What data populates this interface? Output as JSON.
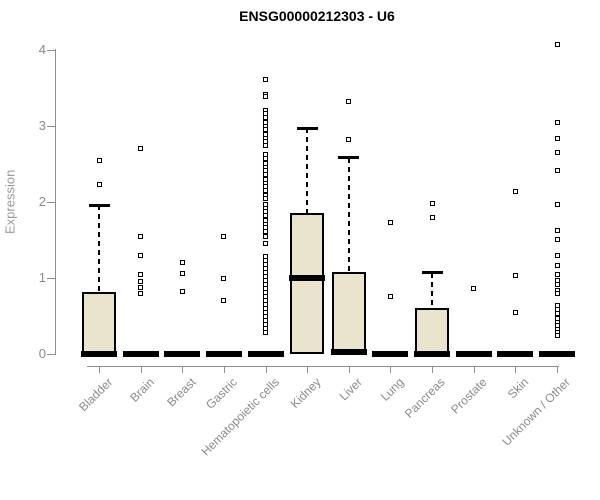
{
  "chart_data": {
    "type": "boxplot",
    "title": "ENSG00000212303 - U6",
    "ylabel": "Expression",
    "xlabel": "",
    "ylim": [
      0,
      4
    ],
    "yticks": [
      "0",
      "1",
      "2",
      "3",
      "4"
    ],
    "grid": false,
    "legend": null,
    "categories": [
      "Bladder",
      "Brain",
      "Breast",
      "Gastric",
      "Hematopoietic cells",
      "Kidney",
      "Liver",
      "Lung",
      "Pancreas",
      "Prostate",
      "Skin",
      "Unknown / Other"
    ],
    "series": [
      {
        "category": "Bladder",
        "slug": "bladder",
        "q1": 0,
        "median": 0,
        "q3": 0.82,
        "whisker_low": 0,
        "whisker_high": 1.96,
        "outliers": [
          2.55,
          2.23
        ]
      },
      {
        "category": "Brain",
        "slug": "brain",
        "q1": 0,
        "median": 0,
        "q3": 0,
        "whisker_low": 0,
        "whisker_high": 0,
        "outliers": [
          2.71,
          1.55,
          1.29,
          1.04,
          0.95,
          0.88,
          0.8
        ]
      },
      {
        "category": "Breast",
        "slug": "breast",
        "q1": 0,
        "median": 0,
        "q3": 0,
        "whisker_low": 0,
        "whisker_high": 0,
        "outliers": [
          1.21,
          1.06,
          0.82
        ]
      },
      {
        "category": "Gastric",
        "slug": "gastric",
        "q1": 0,
        "median": 0,
        "q3": 0,
        "whisker_low": 0,
        "whisker_high": 0,
        "outliers": [
          1.55,
          1.0,
          0.71
        ]
      },
      {
        "category": "Hematopoietic cells",
        "slug": "hematopoietic-cells",
        "q1": 0,
        "median": 0,
        "q3": 0,
        "whisker_low": 0,
        "whisker_high": 0,
        "outliers": [
          3.61,
          3.42,
          3.39,
          3.21,
          3.16,
          3.11,
          3.05,
          3.0,
          2.95,
          2.89,
          2.84,
          2.79,
          2.74,
          2.62,
          2.57,
          2.51,
          2.46,
          2.41,
          2.36,
          2.3,
          2.25,
          2.2,
          2.15,
          2.09,
          2.04,
          1.97,
          1.92,
          1.87,
          1.82,
          1.76,
          1.71,
          1.66,
          1.61,
          1.54,
          1.46,
          1.28,
          1.23,
          1.18,
          1.12,
          1.07,
          1.02,
          0.97,
          0.91,
          0.86,
          0.81,
          0.76,
          0.7,
          0.65,
          0.6,
          0.55,
          0.49,
          0.44,
          0.39,
          0.33,
          0.28
        ]
      },
      {
        "category": "Kidney",
        "slug": "kidney",
        "q1": 0,
        "median": 1.0,
        "q3": 1.86,
        "whisker_low": 0,
        "whisker_high": 2.97,
        "outliers": []
      },
      {
        "category": "Liver",
        "slug": "liver",
        "q1": 0,
        "median": 0.03,
        "q3": 1.08,
        "whisker_low": 0,
        "whisker_high": 2.58,
        "outliers": [
          3.32,
          2.82
        ]
      },
      {
        "category": "Lung",
        "slug": "lung",
        "q1": 0,
        "median": 0,
        "q3": 0,
        "whisker_low": 0,
        "whisker_high": 0,
        "outliers": [
          1.73,
          0.76
        ]
      },
      {
        "category": "Pancreas",
        "slug": "pancreas",
        "q1": 0,
        "median": 0,
        "q3": 0.6,
        "whisker_low": 0,
        "whisker_high": 1.07,
        "outliers": [
          1.98,
          1.79
        ]
      },
      {
        "category": "Prostate",
        "slug": "prostate",
        "q1": 0,
        "median": 0,
        "q3": 0,
        "whisker_low": 0,
        "whisker_high": 0,
        "outliers": [
          0.86
        ]
      },
      {
        "category": "Skin",
        "slug": "skin",
        "q1": 0,
        "median": 0,
        "q3": 0,
        "whisker_low": 0,
        "whisker_high": 0,
        "outliers": [
          2.14,
          1.03,
          0.54
        ]
      },
      {
        "category": "Unknown / Other",
        "slug": "unknown-other",
        "q1": 0,
        "median": 0,
        "q3": 0,
        "whisker_low": 0,
        "whisker_high": 0,
        "outliers": [
          4.07,
          3.04,
          2.84,
          2.65,
          2.42,
          1.97,
          1.63,
          1.51,
          1.3,
          1.17,
          1.04,
          0.97,
          0.91,
          0.84,
          0.8,
          0.64,
          0.58,
          0.53,
          0.47,
          0.42,
          0.37,
          0.32,
          0.28,
          0.24
        ]
      }
    ],
    "colors": {
      "box_fill": "#e9e4cb",
      "box_border": "#000000",
      "median": "#000000",
      "axis": "#8e8e8e",
      "tick_text": "#8a8a8a",
      "title_text": "#000000",
      "background": "#ffffff"
    }
  }
}
